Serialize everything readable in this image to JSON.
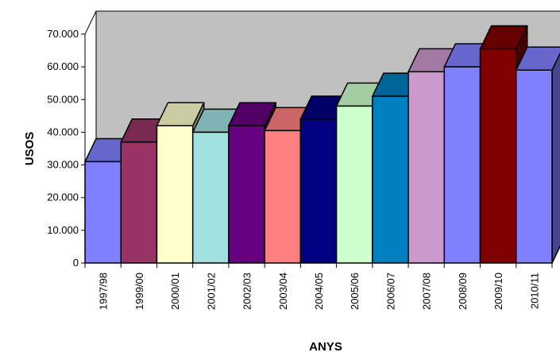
{
  "chart_data": {
    "type": "bar",
    "title": "",
    "xlabel": "ANYS",
    "ylabel": "USOS",
    "categories": [
      "1997/98",
      "1999/00",
      "2000/01",
      "2001/02",
      "2002/03",
      "2003/04",
      "2004/05",
      "2005/06",
      "2006/07",
      "2007/08",
      "2008/09",
      "2009/10",
      "2010/11"
    ],
    "values": [
      31000,
      37000,
      42000,
      40000,
      42000,
      40500,
      44000,
      48000,
      51000,
      58500,
      60000,
      65500,
      59000
    ],
    "ylim": [
      0,
      70000
    ],
    "yticks": [
      0,
      10000,
      20000,
      30000,
      40000,
      50000,
      60000,
      70000
    ],
    "ytick_labels": [
      "0",
      "10.000",
      "20.000",
      "30.000",
      "40.000",
      "50.000",
      "60.000",
      "70.000"
    ],
    "colors": [
      "#8080ff",
      "#993366",
      "#ffffcc",
      "#a0e0e0",
      "#660080",
      "#ff8080",
      "#000080",
      "#ccffcc",
      "#0080c0",
      "#cc99cc",
      "#8080ff",
      "#800000",
      "#8080ff"
    ],
    "grid": false,
    "legend": "none",
    "style": "3d"
  }
}
